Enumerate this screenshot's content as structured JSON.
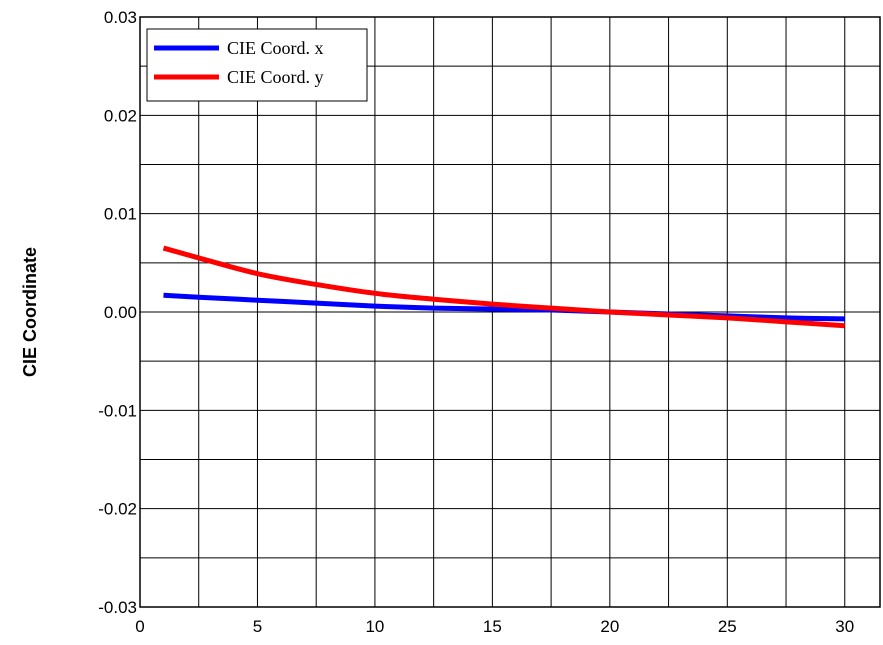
{
  "chart_data": {
    "type": "line",
    "title": "",
    "xlabel": "",
    "ylabel": "CIE Coordinate",
    "xlim": [
      0,
      31.5
    ],
    "ylim": [
      -0.03,
      0.03
    ],
    "x_ticks": [
      0,
      5,
      10,
      15,
      20,
      25,
      30
    ],
    "x_tick_labels": [
      "0",
      "5",
      "10",
      "15",
      "20",
      "25",
      "30"
    ],
    "x_grid_step": 2.5,
    "y_ticks": [
      -0.03,
      -0.02,
      -0.01,
      0.0,
      0.01,
      0.02,
      0.03
    ],
    "y_tick_labels": [
      "-0.03",
      "-0.02",
      "-0.01",
      "0.00",
      "0.01",
      "0.02",
      "0.03"
    ],
    "y_grid_step": 0.005,
    "grid": true,
    "legend_position": "top-left",
    "series": [
      {
        "name": "CIE Coord. x",
        "color": "#0000ff",
        "x": [
          1,
          2.5,
          5,
          7.5,
          10,
          12.5,
          15,
          17.5,
          20,
          22.5,
          25,
          27.5,
          30
        ],
        "y": [
          0.0017,
          0.0015,
          0.0012,
          0.0009,
          0.0006,
          0.0004,
          0.0003,
          0.0002,
          0.0,
          -0.0002,
          -0.0004,
          -0.0006,
          -0.0007
        ]
      },
      {
        "name": "CIE Coord. y",
        "color": "#ff0000",
        "x": [
          1,
          2.5,
          5,
          7.5,
          10,
          12.5,
          15,
          17.5,
          20,
          22.5,
          25,
          27.5,
          30
        ],
        "y": [
          0.0065,
          0.0055,
          0.0039,
          0.0028,
          0.0019,
          0.0013,
          0.0008,
          0.0004,
          0.0,
          -0.0003,
          -0.0006,
          -0.001,
          -0.0014
        ]
      }
    ]
  }
}
